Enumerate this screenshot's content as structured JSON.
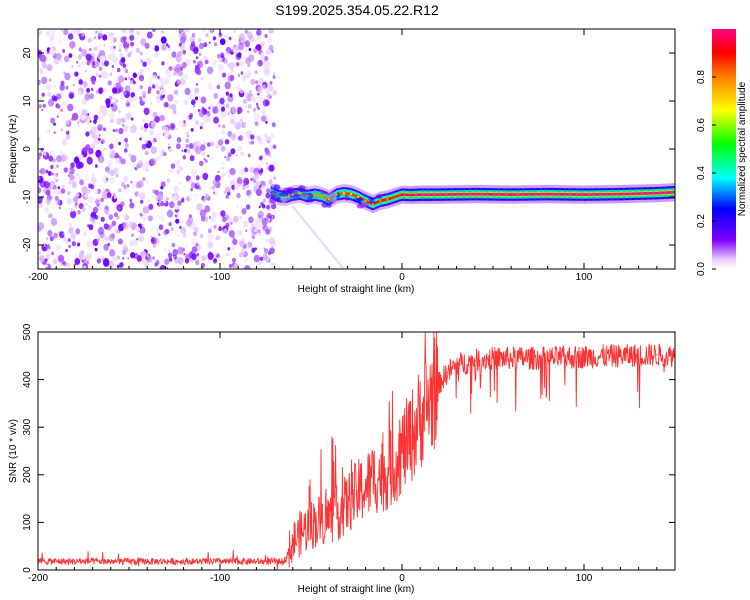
{
  "chart_data": [
    {
      "type": "heatmap",
      "title": "S199.2025.354.05.22.R12",
      "xlabel": "Height of straight line (km)",
      "ylabel": "Frequency (Hz)",
      "xlim": [
        -200,
        150
      ],
      "ylim": [
        -25,
        25
      ],
      "xticks": [
        -200,
        -100,
        0,
        100
      ],
      "yticks": [
        20,
        10,
        0,
        -10,
        -20
      ],
      "noise_region_x": [
        -200,
        -72
      ],
      "signal_track": {
        "x": [
          -72,
          -68,
          -64,
          -60,
          -56,
          -52,
          -48,
          -44,
          -40,
          -36,
          -32,
          -28,
          -24,
          -20,
          -16,
          -12,
          -8,
          -4,
          0,
          5,
          10,
          20,
          40,
          60,
          80,
          100,
          120,
          140,
          150
        ],
        "y": [
          -9,
          -9.8,
          -10,
          -9.5,
          -9.3,
          -9.8,
          -9.5,
          -9.8,
          -10.5,
          -9.5,
          -9.2,
          -9.4,
          -10,
          -10.8,
          -11.5,
          -10.8,
          -10.5,
          -10,
          -9.5,
          -9.6,
          -9.5,
          -9.5,
          -9.4,
          -9.5,
          -9.4,
          -9.5,
          -9.4,
          -9.2,
          -9.0
        ],
        "amplitude": [
          0.3,
          0.35,
          0.4,
          0.4,
          0.45,
          0.5,
          0.5,
          0.55,
          0.6,
          0.6,
          0.65,
          0.7,
          0.7,
          0.75,
          0.75,
          0.8,
          0.8,
          0.85,
          0.9,
          0.95,
          1.0,
          1.0,
          1.0,
          1.0,
          1.0,
          1.0,
          1.0,
          1.0,
          1.0
        ]
      },
      "colorbar": {
        "label": "Normalized spectral amplitude",
        "range": [
          0.0,
          1.0
        ],
        "ticks": [
          "0.0",
          "0.2",
          "0.4",
          "0.6",
          "0.8"
        ],
        "tick_values": [
          0.0,
          0.2,
          0.4,
          0.6,
          0.8
        ],
        "colors": [
          "#ffffff",
          "#e6ccff",
          "#8000ff",
          "#0000ff",
          "#00ffff",
          "#00ff00",
          "#ffff00",
          "#ff8000",
          "#ff0000",
          "#ff0080"
        ]
      }
    },
    {
      "type": "line",
      "xlabel": "Height of straight line (km)",
      "ylabel": "SNR (10 * v/v)",
      "xlim": [
        -200,
        150
      ],
      "ylim": [
        0,
        500
      ],
      "xticks": [
        -200,
        -100,
        0,
        100
      ],
      "yticks": [
        0,
        100,
        200,
        300,
        400,
        500
      ],
      "color": "#ff3333",
      "series": [
        {
          "name": "SNR",
          "x": [
            -200,
            -180,
            -160,
            -140,
            -120,
            -100,
            -80,
            -65,
            -60,
            -55,
            -50,
            -45,
            -40,
            -35,
            -30,
            -25,
            -20,
            -15,
            -10,
            -5,
            0,
            5,
            10,
            15,
            20,
            25,
            30,
            40,
            50,
            60,
            80,
            100,
            120,
            140,
            150
          ],
          "y": [
            18,
            18,
            18,
            18,
            18,
            18,
            18,
            18,
            60,
            80,
            95,
            105,
            110,
            120,
            140,
            160,
            175,
            195,
            200,
            215,
            250,
            280,
            320,
            355,
            390,
            415,
            430,
            440,
            445,
            445,
            445,
            448,
            450,
            452,
            450
          ]
        }
      ]
    }
  ]
}
